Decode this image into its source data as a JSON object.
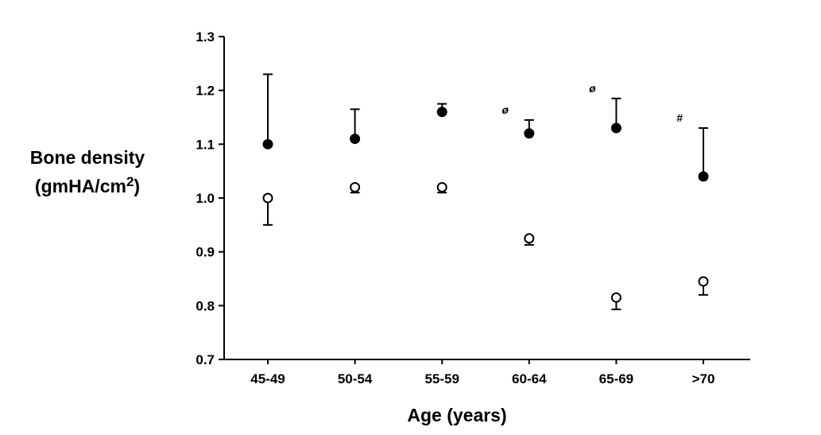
{
  "chart_data": {
    "type": "scatter",
    "title": "",
    "xlabel": "Age (years)",
    "ylabel_line1": "Bone density",
    "ylabel_line2_prefix": "(gmHA/cm",
    "ylabel_line2_sup": "2",
    "ylabel_line2_suffix": ")",
    "ylim": [
      0.7,
      1.3
    ],
    "yticks": [
      "0.7",
      "0.8",
      "0.9",
      "1.0",
      "1.1",
      "1.2",
      "1.3"
    ],
    "categories": [
      "45-49",
      "50-54",
      "55-59",
      "60-64",
      "65-69",
      ">70"
    ],
    "grid": false,
    "legend": "none",
    "series": [
      {
        "marker": "filled-circle",
        "color": "#000000",
        "error_direction": "up",
        "values": [
          1.1,
          1.11,
          1.16,
          1.12,
          1.13,
          1.04
        ],
        "error": [
          0.13,
          0.055,
          0.015,
          0.025,
          0.055,
          0.09
        ]
      },
      {
        "marker": "open-circle",
        "color": "#000000",
        "error_direction": "down",
        "values": [
          1.0,
          1.02,
          1.02,
          0.925,
          0.815,
          0.845
        ],
        "error": [
          0.05,
          0.01,
          0.01,
          0.012,
          0.022,
          0.025
        ]
      }
    ],
    "annotations": [
      {
        "category": "60-64",
        "text": "ø"
      },
      {
        "category": "65-69",
        "text": "ø"
      },
      {
        "category": ">70",
        "text": "#"
      }
    ]
  }
}
